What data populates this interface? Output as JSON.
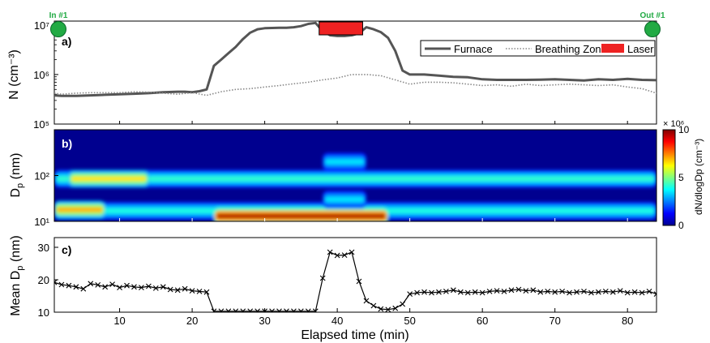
{
  "chart_data": [
    {
      "panel": "a",
      "type": "line",
      "panel_label": "a)",
      "ylabel": "N (cm⁻³)",
      "yscale": "log",
      "ylim": [
        100000,
        12000000
      ],
      "yticks": [
        {
          "value": 100000,
          "label": "10⁵"
        },
        {
          "value": 1000000,
          "label": "10⁶"
        },
        {
          "value": 10000000,
          "label": "10⁷"
        }
      ],
      "xlim": [
        1,
        84
      ],
      "series": [
        {
          "name": "Furnace",
          "color": "#555555",
          "style": "solid",
          "x": [
            1,
            2,
            4,
            6,
            8,
            10,
            12,
            14,
            16,
            18,
            19,
            20,
            21,
            22,
            23,
            24,
            25,
            26,
            27,
            28,
            29,
            30,
            31,
            32,
            33,
            34,
            35,
            36,
            37,
            38,
            39,
            40,
            41,
            42,
            43,
            44,
            45,
            46,
            47,
            48,
            49,
            50,
            52,
            54,
            56,
            58,
            60,
            62,
            64,
            66,
            68,
            70,
            72,
            74,
            76,
            78,
            80,
            82,
            84
          ],
          "y": [
            380000,
            370000,
            370000,
            380000,
            390000,
            400000,
            410000,
            420000,
            440000,
            450000,
            450000,
            440000,
            460000,
            500000,
            1500000,
            2000000,
            2700000,
            3600000,
            5200000,
            7000000,
            8200000,
            8600000,
            8700000,
            8800000,
            8800000,
            9000000,
            9500000,
            10500000,
            11000000,
            7500000,
            6200000,
            6000000,
            6000000,
            6200000,
            6800000,
            9000000,
            8200000,
            7200000,
            5500000,
            3000000,
            1200000,
            1000000,
            1000000,
            950000,
            900000,
            880000,
            800000,
            780000,
            780000,
            780000,
            790000,
            800000,
            780000,
            760000,
            800000,
            780000,
            820000,
            780000,
            770000
          ]
        },
        {
          "name": "Breathing Zone",
          "color": "#888888",
          "style": "dotted",
          "x": [
            1,
            2,
            4,
            6,
            8,
            10,
            12,
            14,
            16,
            18,
            20,
            22,
            24,
            26,
            28,
            30,
            32,
            34,
            36,
            38,
            40,
            42,
            44,
            46,
            48,
            50,
            52,
            54,
            56,
            58,
            60,
            62,
            64,
            66,
            68,
            70,
            72,
            74,
            76,
            78,
            80,
            82,
            84
          ],
          "y": [
            420000,
            400000,
            420000,
            430000,
            430000,
            430000,
            450000,
            440000,
            420000,
            400000,
            430000,
            380000,
            450000,
            500000,
            520000,
            560000,
            600000,
            650000,
            700000,
            780000,
            850000,
            1000000,
            1000000,
            950000,
            780000,
            640000,
            700000,
            700000,
            680000,
            640000,
            600000,
            620000,
            580000,
            640000,
            600000,
            620000,
            640000,
            620000,
            600000,
            620000,
            560000,
            520000,
            420000
          ]
        },
        {
          "name": "Laser",
          "type": "bar-marker",
          "color": "#ee2222",
          "x_start": 37.5,
          "x_end": 43.5
        }
      ],
      "legend_placement": "top-right",
      "markers": [
        {
          "label": "In #1",
          "x": 1,
          "color": "#22aa44"
        },
        {
          "label": "Out #1",
          "x": 84,
          "color": "#22aa44"
        }
      ]
    },
    {
      "panel": "b",
      "type": "heatmap",
      "panel_label": "b)",
      "ylabel": "D",
      "ylabel_subscript": "p",
      "ylabel_unit": "(nm)",
      "yscale": "log",
      "ylim": [
        10,
        1000
      ],
      "yticks": [
        {
          "value": 10,
          "label": "10¹"
        },
        {
          "value": 100,
          "label": "10²"
        }
      ],
      "xlim": [
        1,
        84
      ],
      "colorbar": {
        "label": "dN/dlogDp (cm⁻³)",
        "multiplier_label": "× 10⁶",
        "range": [
          0,
          10
        ],
        "ticks": [
          {
            "value": 0,
            "label": "0"
          },
          {
            "value": 5,
            "label": "5"
          },
          {
            "value": 10,
            "label": "10"
          }
        ]
      },
      "bands": [
        {
          "x_start": 1,
          "x_end": 84,
          "dp_center": 85,
          "intensity": 4.2,
          "note": "upper mode"
        },
        {
          "x_start": 3,
          "x_end": 14,
          "dp_center": 85,
          "intensity": 6.5,
          "note": "upper mode peak"
        },
        {
          "x_start": 1,
          "x_end": 84,
          "dp_center": 17,
          "intensity": 4.0,
          "note": "lower mode"
        },
        {
          "x_start": 1,
          "x_end": 8,
          "dp_center": 18,
          "intensity": 7.0,
          "note": "lower mode early"
        },
        {
          "x_start": 23,
          "x_end": 47,
          "dp_center": 13,
          "intensity": 9.5,
          "note": "furnace ultrafine burst"
        },
        {
          "x_start": 38,
          "x_end": 44,
          "dp_center": 200,
          "intensity": 3.5,
          "note": "laser large particle plume"
        },
        {
          "x_start": 38,
          "x_end": 44,
          "dp_center": 30,
          "intensity": 3.5,
          "note": "laser mid plume"
        }
      ]
    },
    {
      "panel": "c",
      "type": "line",
      "panel_label": "c)",
      "ylabel": "Mean D",
      "ylabel_subscript": "p",
      "ylabel_unit": "(nm)",
      "xlabel": "Elapsed time (min)",
      "xlim": [
        1,
        84
      ],
      "xticks": [
        10,
        20,
        30,
        40,
        50,
        60,
        70,
        80
      ],
      "ylim": [
        10,
        33
      ],
      "yticks": [
        10,
        20,
        30
      ],
      "series": [
        {
          "marker": "x",
          "color": "#000000",
          "x": [
            1,
            2,
            3,
            4,
            5,
            6,
            7,
            8,
            9,
            10,
            11,
            12,
            13,
            14,
            15,
            16,
            17,
            18,
            19,
            20,
            21,
            22,
            23,
            24,
            25,
            26,
            27,
            28,
            29,
            30,
            31,
            32,
            33,
            34,
            35,
            36,
            37,
            38,
            39,
            40,
            41,
            42,
            43,
            44,
            45,
            46,
            47,
            48,
            49,
            50,
            51,
            52,
            53,
            54,
            55,
            56,
            57,
            58,
            59,
            60,
            61,
            62,
            63,
            64,
            65,
            66,
            67,
            68,
            69,
            70,
            71,
            72,
            73,
            74,
            75,
            76,
            77,
            78,
            79,
            80,
            81,
            82,
            83,
            84
          ],
          "y": [
            19.2,
            18.5,
            18.2,
            17.8,
            17.2,
            18.8,
            18.4,
            17.8,
            18.6,
            17.6,
            18.2,
            17.8,
            17.6,
            18.0,
            17.4,
            17.8,
            17.0,
            16.8,
            17.2,
            16.6,
            16.4,
            16.2,
            10.3,
            10.3,
            10.3,
            10.3,
            10.3,
            10.3,
            10.3,
            10.3,
            10.3,
            10.3,
            10.3,
            10.3,
            10.3,
            10.3,
            10.3,
            20.5,
            28.5,
            27.5,
            27.6,
            28.5,
            19.5,
            13.5,
            12.0,
            11.0,
            10.8,
            11.2,
            12.5,
            15.6,
            16.0,
            16.2,
            16.0,
            16.2,
            16.4,
            16.8,
            16.2,
            16.0,
            16.2,
            16.0,
            16.4,
            16.6,
            16.4,
            16.8,
            17.0,
            16.6,
            16.8,
            16.2,
            16.4,
            16.2,
            16.4,
            16.0,
            16.2,
            16.4,
            16.0,
            16.2,
            16.4,
            16.2,
            16.6,
            16.0,
            16.2,
            16.0,
            16.4,
            15.6
          ]
        }
      ]
    }
  ]
}
